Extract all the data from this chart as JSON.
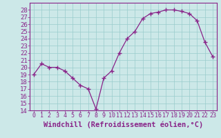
{
  "x": [
    0,
    1,
    2,
    3,
    4,
    5,
    6,
    7,
    8,
    9,
    10,
    11,
    12,
    13,
    14,
    15,
    16,
    17,
    18,
    19,
    20,
    21,
    22,
    23
  ],
  "y": [
    19,
    20.5,
    20,
    20,
    19.5,
    18.5,
    17.5,
    17,
    14.2,
    18.5,
    19.5,
    22,
    24,
    25,
    26.8,
    27.5,
    27.7,
    28,
    28,
    27.8,
    27.5,
    26.5,
    23.5,
    21.5
  ],
  "line_color": "#882288",
  "marker": "+",
  "marker_size": 4,
  "bg_color": "#cce8e8",
  "grid_color": "#99cccc",
  "xlabel": "Windchill (Refroidissement éolien,°C)",
  "xlim": [
    -0.5,
    23.5
  ],
  "ylim": [
    14,
    29
  ],
  "yticks": [
    14,
    15,
    16,
    17,
    18,
    19,
    20,
    21,
    22,
    23,
    24,
    25,
    26,
    27,
    28
  ],
  "xtick_labels": [
    "0",
    "1",
    "2",
    "3",
    "4",
    "5",
    "6",
    "7",
    "8",
    "9",
    "10",
    "11",
    "12",
    "13",
    "14",
    "15",
    "16",
    "17",
    "18",
    "19",
    "20",
    "21",
    "22",
    "23"
  ],
  "xlabel_fontsize": 7.5,
  "ytick_fontsize": 6.5,
  "xtick_fontsize": 6
}
